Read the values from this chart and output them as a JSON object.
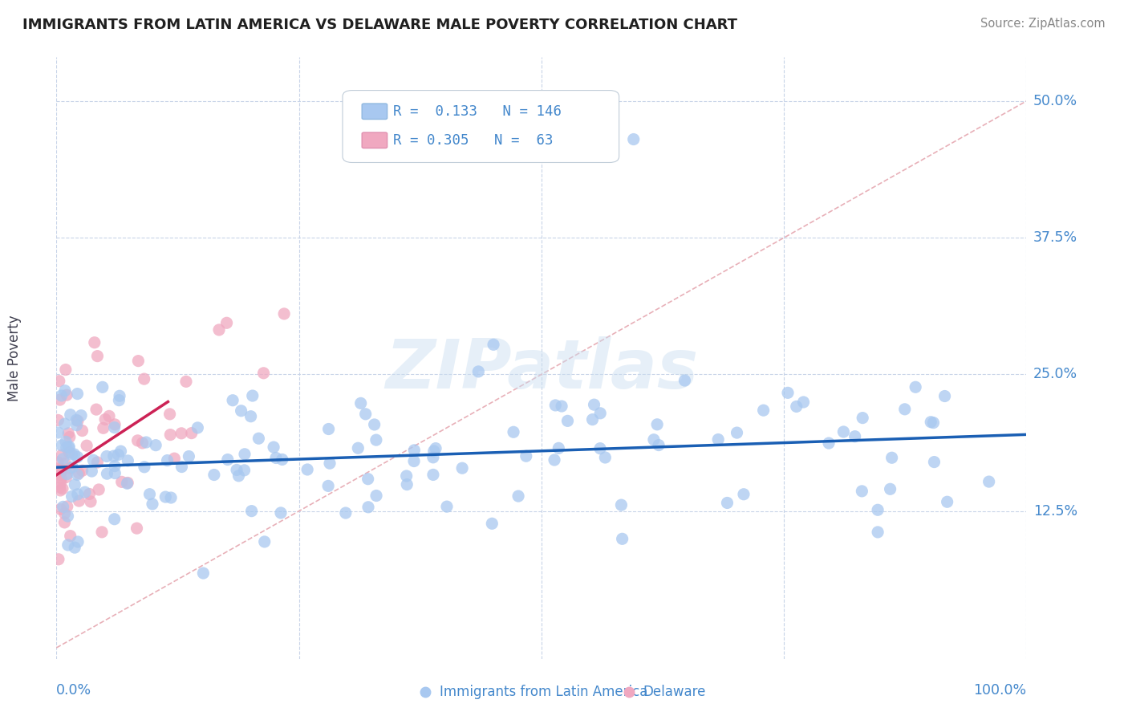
{
  "title": "IMMIGRANTS FROM LATIN AMERICA VS DELAWARE MALE POVERTY CORRELATION CHART",
  "source": "Source: ZipAtlas.com",
  "ylabel": "Male Poverty",
  "xlim": [
    0.0,
    1.0
  ],
  "ylim": [
    -0.01,
    0.54
  ],
  "blue_R": 0.133,
  "blue_N": 146,
  "pink_R": 0.305,
  "pink_N": 63,
  "blue_color": "#a8c8f0",
  "pink_color": "#f0a8c0",
  "blue_line_color": "#1a5fb4",
  "pink_line_color": "#cc2255",
  "diagonal_color": "#e8b0b8",
  "watermark": "ZIPatlas",
  "background_color": "#ffffff",
  "grid_color": "#c8d4e8",
  "title_color": "#202020",
  "axis_label_color": "#4488cc",
  "legend_text_color": "#4488cc",
  "blue_line_x0": 0.0,
  "blue_line_y0": 0.165,
  "blue_line_x1": 1.0,
  "blue_line_y1": 0.195,
  "pink_line_x0": 0.0,
  "pink_line_y0": 0.158,
  "pink_line_x1": 0.115,
  "pink_line_y1": 0.225
}
